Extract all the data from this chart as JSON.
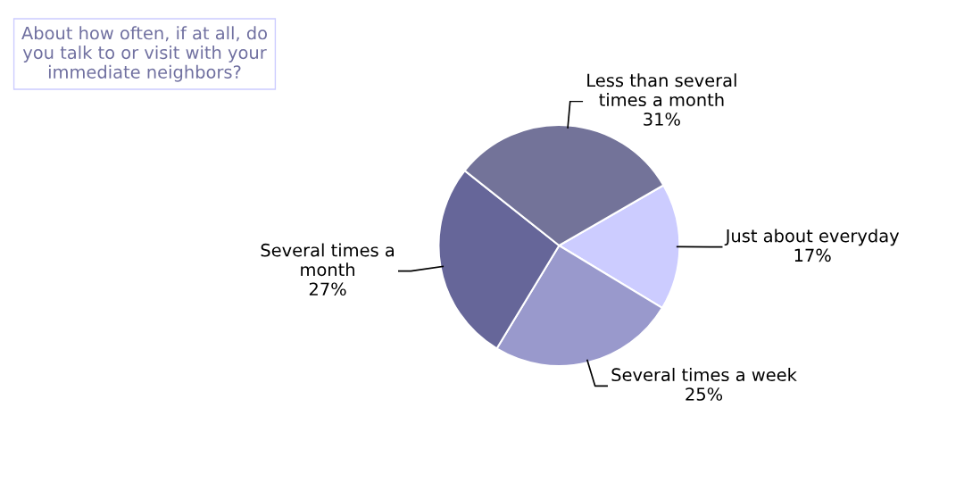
{
  "chart_data": {
    "type": "pie",
    "title": "About how often, if at all, do\nyou talk to or visit with your\nimmediate neighbors?",
    "categories": [
      "Just about everyday",
      "Several times a week",
      "Several times a\nmonth",
      "Less than several\ntimes a month"
    ],
    "values": [
      17,
      25,
      27,
      31
    ],
    "colors": [
      "#ccccff",
      "#9999cc",
      "#666699",
      "#737399"
    ],
    "value_labels": [
      "17%",
      "25%",
      "27%",
      "31%"
    ]
  }
}
